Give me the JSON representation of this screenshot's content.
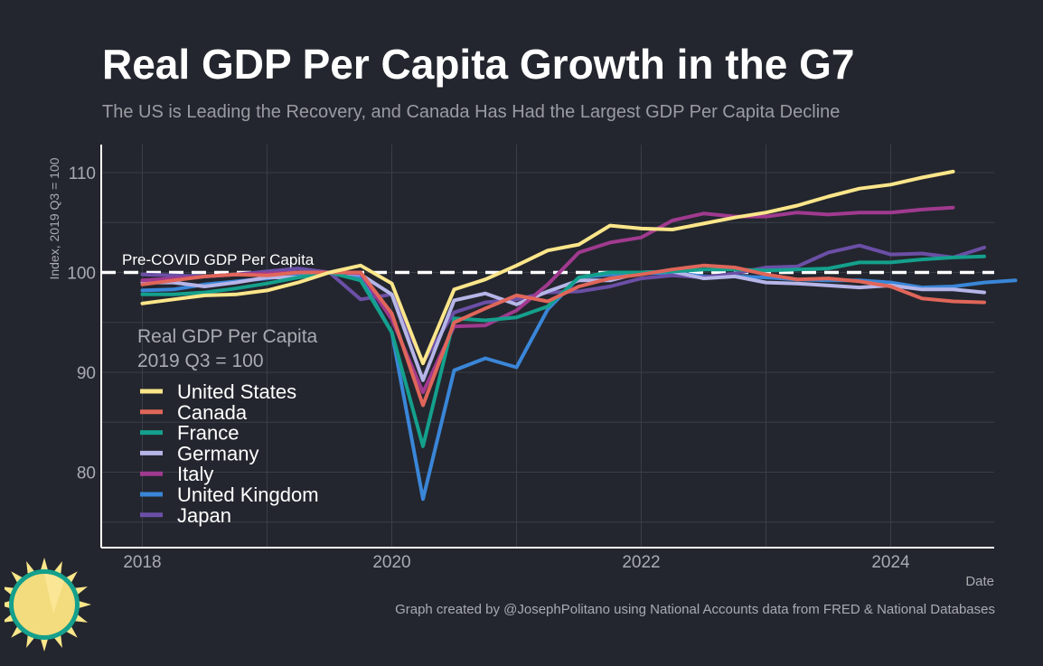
{
  "header": {
    "title": "Real GDP Per Capita Growth in the G7",
    "subtitle": "The US is Leading the Recovery, and Canada Has Had the Largest GDP Per Capita Decline"
  },
  "footer": {
    "caption": "Graph created by @JosephPolitano using National Accounts data from FRED & National Databases"
  },
  "logo": {
    "icon": "sun-icon"
  },
  "chart_data": {
    "type": "line",
    "ylabel": "Index, 2019 Q3 = 100",
    "xlabel": "Date",
    "xlim": [
      2017.7,
      2024.8
    ],
    "ylim": [
      74,
      112.5
    ],
    "x_ticks": [
      2018,
      2020,
      2022,
      2024
    ],
    "x_tick_labels": [
      "2018",
      "2020",
      "2022",
      "2024"
    ],
    "y_ticks": [
      80,
      90,
      100,
      110
    ],
    "y_tick_labels": [
      "80",
      "90",
      "100",
      "110"
    ],
    "grid": true,
    "reference_line": {
      "y": 100,
      "label": "Pre-COVID GDP Per Capita",
      "style": "dashed",
      "color": "#ffffff"
    },
    "legend": {
      "title_line1": "Real GDP Per Capita",
      "title_line2": "2019 Q3 = 100",
      "position": "left"
    },
    "series": [
      {
        "name": "United Kingdom",
        "color": "#3a86d8",
        "start": 2018,
        "step": 0.25,
        "values": [
          98.2,
          98.3,
          98.8,
          99.1,
          99.4,
          99.8,
          100.0,
          99.5,
          94.0,
          77.3,
          90.2,
          91.4,
          90.5,
          96.3,
          99.5,
          99.8,
          99.9,
          100.0,
          99.6,
          99.6,
          99.5,
          99.3,
          99.2,
          99.2,
          99.0,
          98.5,
          98.6,
          99.0,
          99.2
        ]
      },
      {
        "name": "Japan",
        "color": "#6b4fa6",
        "start": 2018,
        "step": 0.25,
        "values": [
          99.8,
          99.7,
          99.6,
          99.8,
          100.1,
          100.4,
          100.0,
          97.3,
          97.8,
          91.0,
          96.0,
          97.0,
          97.3,
          98.0,
          98.1,
          98.6,
          99.4,
          99.7,
          99.5,
          99.9,
          100.5,
          100.6,
          102.0,
          102.7,
          101.8,
          101.9,
          101.5,
          102.5
        ]
      },
      {
        "name": "Germany",
        "color": "#b6b5e8",
        "start": 2018,
        "step": 0.25,
        "values": [
          99.0,
          99.0,
          98.6,
          99.0,
          99.5,
          99.5,
          100.0,
          99.8,
          97.8,
          89.2,
          97.2,
          97.9,
          96.8,
          98.1,
          99.2,
          99.2,
          100.0,
          100.1,
          99.4,
          99.6,
          99.0,
          98.9,
          98.7,
          98.5,
          98.7,
          98.3,
          98.3,
          98.0
        ]
      },
      {
        "name": "Italy",
        "color": "#a03a8f",
        "start": 2018,
        "step": 0.25,
        "values": [
          99.2,
          99.4,
          99.6,
          99.8,
          99.9,
          100.0,
          100.0,
          99.9,
          95.3,
          88.0,
          94.6,
          94.7,
          96.2,
          98.8,
          102.0,
          103.0,
          103.5,
          105.2,
          105.9,
          105.6,
          105.6,
          106.0,
          105.8,
          106.0,
          106.0,
          106.3,
          106.5
        ]
      },
      {
        "name": "France",
        "color": "#14a08c",
        "start": 2018,
        "step": 0.25,
        "values": [
          97.8,
          97.8,
          98.0,
          98.4,
          98.9,
          99.5,
          100.0,
          99.2,
          94.0,
          82.6,
          95.4,
          95.2,
          95.5,
          96.6,
          99.5,
          100.0,
          100.0,
          100.1,
          100.3,
          100.3,
          100.2,
          100.3,
          100.4,
          101.0,
          101.0,
          101.3,
          101.5,
          101.6
        ]
      },
      {
        "name": "Canada",
        "color": "#e0665a",
        "start": 2018,
        "step": 0.25,
        "values": [
          98.8,
          99.2,
          99.6,
          99.8,
          99.7,
          100.0,
          100.0,
          100.0,
          95.9,
          86.7,
          95.0,
          96.4,
          97.7,
          97.1,
          98.6,
          99.4,
          99.8,
          100.3,
          100.7,
          100.5,
          99.8,
          99.3,
          99.4,
          99.1,
          98.6,
          97.4,
          97.1,
          97.0
        ]
      },
      {
        "name": "United States",
        "color": "#fce68a",
        "start": 2018,
        "step": 0.25,
        "values": [
          96.9,
          97.3,
          97.7,
          97.8,
          98.2,
          99.0,
          100.0,
          100.7,
          98.9,
          90.9,
          98.3,
          99.3,
          100.7,
          102.2,
          102.8,
          104.7,
          104.4,
          104.3,
          104.9,
          105.5,
          106.0,
          106.7,
          107.6,
          108.4,
          108.8,
          109.5,
          110.1
        ]
      }
    ],
    "legend_order": [
      "United States",
      "Canada",
      "France",
      "Germany",
      "Italy",
      "United Kingdom",
      "Japan"
    ]
  }
}
